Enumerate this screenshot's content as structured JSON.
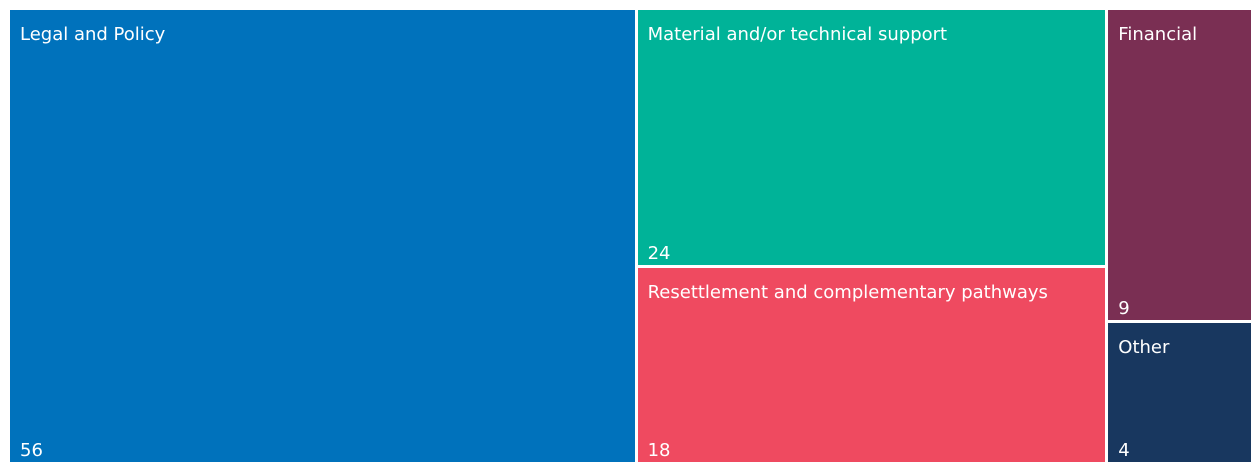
{
  "chart_data": {
    "type": "treemap",
    "categories": [
      "Legal and Policy",
      "Material and/or technical support",
      "Resettlement and complementary pathways",
      "Financial",
      "Other"
    ],
    "values": [
      56,
      24,
      18,
      9,
      4
    ],
    "colors": [
      "#0072bc",
      "#00b398",
      "#ef4a60",
      "#7a2f53",
      "#18375f"
    ]
  }
}
